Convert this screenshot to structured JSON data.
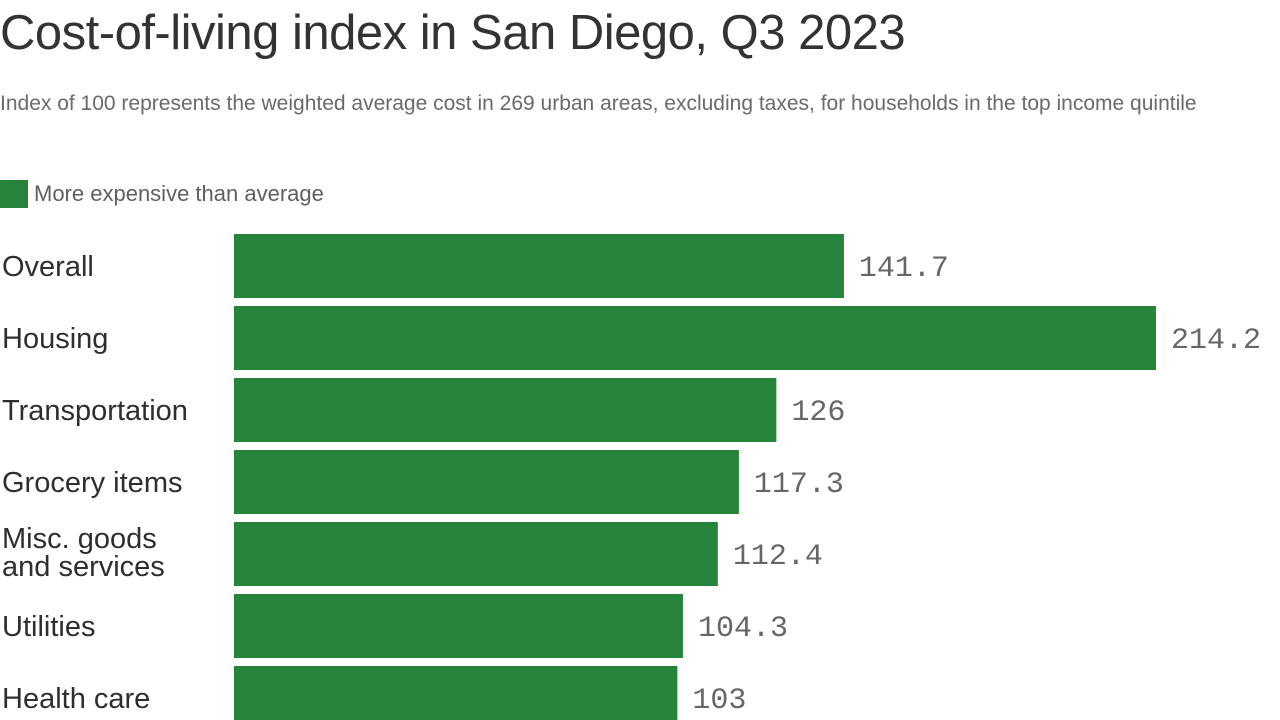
{
  "colors": {
    "bar": "#26843a",
    "title": "#333333",
    "subtitle": "#6a6a6a",
    "value_label": "#666666"
  },
  "legend": {
    "label": "More expensive than average"
  },
  "chart_data": {
    "type": "bar",
    "orientation": "horizontal",
    "title": "Cost-of-living index in San Diego, Q3 2023",
    "subtitle": "Index of 100 represents the weighted average cost in 269 urban areas, excluding taxes, for households in the top income quintile",
    "categories": [
      "Overall",
      "Housing",
      "Transportation",
      "Grocery items",
      "Misc. goods and services",
      "Utilities",
      "Health care"
    ],
    "category_lines": [
      [
        "Overall"
      ],
      [
        "Housing"
      ],
      [
        "Transportation"
      ],
      [
        "Grocery items"
      ],
      [
        "Misc. goods",
        "and services"
      ],
      [
        "Utilities"
      ],
      [
        "Health care"
      ]
    ],
    "values": [
      141.7,
      214.2,
      126,
      117.3,
      112.4,
      104.3,
      103
    ],
    "value_labels": [
      "141.7",
      "214.2",
      "126",
      "117.3",
      "112.4",
      "104.3",
      "103"
    ],
    "legend_entries": [
      "More expensive than average"
    ],
    "xlim": [
      0,
      214.2
    ],
    "grid": false,
    "legend_position": "top-left"
  }
}
